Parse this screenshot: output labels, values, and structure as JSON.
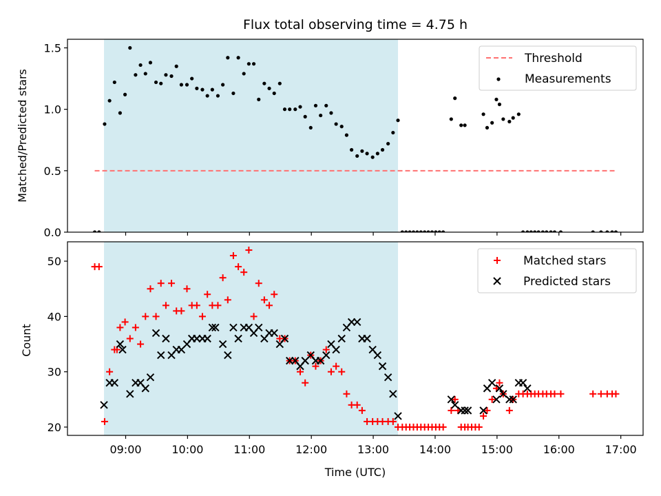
{
  "title": "Flux total observing time = 4.75 h",
  "xlabel": "Time (UTC)",
  "x_ticks": [
    {
      "h": 9,
      "label": "09:00"
    },
    {
      "h": 10,
      "label": "10:00"
    },
    {
      "h": 11,
      "label": "11:00"
    },
    {
      "h": 12,
      "label": "12:00"
    },
    {
      "h": 13,
      "label": "13:00"
    },
    {
      "h": 14,
      "label": "14:00"
    },
    {
      "h": 15,
      "label": "15:00"
    },
    {
      "h": 16,
      "label": "16:00"
    },
    {
      "h": 17,
      "label": "17:00"
    }
  ],
  "colors": {
    "threshold": "#ff7070",
    "measurements": "#000000",
    "matched": "#ff0000",
    "predicted": "#000000",
    "span": "#d4ebf1"
  },
  "chart_data": [
    {
      "type": "scatter",
      "ylabel": "Matched/Predicted stars",
      "xlim": [
        8.06,
        17.36
      ],
      "ylim": [
        0.0,
        1.57
      ],
      "y_ticks": [
        0.0,
        0.5,
        1.0,
        1.5
      ],
      "y_tick_labels": [
        "0.0",
        "0.5",
        "1.0",
        "1.5"
      ],
      "observing_span": [
        8.65,
        13.4
      ],
      "threshold": {
        "name": "Threshold",
        "value": 0.5,
        "x_range": [
          8.5,
          16.92
        ]
      },
      "legend": {
        "placement": "top-right",
        "entries": [
          "Threshold",
          "Measurements"
        ]
      },
      "series": [
        {
          "name": "Measurements",
          "x": [
            8.5,
            8.57,
            8.66,
            8.74,
            8.82,
            8.91,
            8.99,
            9.07,
            9.16,
            9.24,
            9.32,
            9.4,
            9.49,
            9.57,
            9.65,
            9.74,
            9.82,
            9.9,
            9.99,
            10.07,
            10.15,
            10.24,
            10.32,
            10.4,
            10.49,
            10.57,
            10.65,
            10.74,
            10.82,
            10.91,
            10.99,
            11.07,
            11.15,
            11.24,
            11.32,
            11.4,
            11.49,
            11.57,
            11.65,
            11.74,
            11.82,
            11.9,
            11.99,
            12.07,
            12.15,
            12.24,
            12.32,
            12.4,
            12.49,
            12.57,
            12.65,
            12.74,
            12.82,
            12.9,
            12.99,
            13.07,
            13.15,
            13.24,
            13.32,
            13.4,
            13.47,
            13.53,
            13.59,
            13.65,
            13.71,
            13.77,
            13.83,
            13.89,
            13.95,
            14.01,
            14.07,
            14.13,
            14.26,
            14.32,
            14.42,
            14.48,
            14.78,
            14.84,
            14.92,
            14.99,
            15.04,
            15.1,
            15.2,
            15.26,
            15.35,
            15.42,
            15.49,
            15.55,
            15.61,
            15.67,
            15.74,
            15.8,
            15.87,
            15.93,
            16.03,
            16.55,
            16.68,
            16.78,
            16.86,
            16.92
          ],
          "y": [
            0,
            0,
            0.88,
            1.07,
            1.22,
            0.97,
            1.12,
            1.5,
            1.28,
            1.36,
            1.29,
            1.38,
            1.22,
            1.21,
            1.28,
            1.27,
            1.35,
            1.2,
            1.2,
            1.25,
            1.17,
            1.16,
            1.11,
            1.16,
            1.11,
            1.2,
            1.42,
            1.13,
            1.42,
            1.29,
            1.37,
            1.37,
            1.08,
            1.21,
            1.17,
            1.13,
            1.21,
            1,
            1,
            1,
            1.02,
            0.94,
            0.85,
            1.03,
            0.95,
            1.03,
            0.97,
            0.88,
            0.86,
            0.79,
            0.67,
            0.62,
            0.66,
            0.64,
            0.61,
            0.64,
            0.67,
            0.72,
            0.81,
            0.91,
            0,
            0,
            0,
            0,
            0,
            0,
            0,
            0,
            0,
            0,
            0,
            0,
            0.92,
            1.09,
            0.87,
            0.87,
            0.96,
            0.85,
            0.89,
            1.08,
            1.04,
            0.92,
            0.9,
            0.93,
            0.96,
            0,
            0,
            0,
            0,
            0,
            0,
            0,
            0,
            0,
            0,
            0,
            0,
            0,
            0,
            0
          ]
        }
      ]
    },
    {
      "type": "scatter",
      "ylabel": "Count",
      "xlim": [
        8.06,
        17.36
      ],
      "ylim": [
        18.5,
        53.5
      ],
      "y_ticks": [
        20,
        30,
        40,
        50
      ],
      "y_tick_labels": [
        "20",
        "30",
        "40",
        "50"
      ],
      "observing_span": [
        8.65,
        13.4
      ],
      "legend": {
        "placement": "top-right",
        "entries": [
          "Matched stars",
          "Predicted stars"
        ]
      },
      "series": [
        {
          "name": "Matched stars",
          "marker": "+",
          "x": [
            8.5,
            8.57,
            8.66,
            8.74,
            8.82,
            8.86,
            8.91,
            8.99,
            9.07,
            9.16,
            9.24,
            9.32,
            9.4,
            9.49,
            9.57,
            9.65,
            9.74,
            9.82,
            9.9,
            9.99,
            10.07,
            10.15,
            10.24,
            10.32,
            10.4,
            10.49,
            10.57,
            10.65,
            10.74,
            10.82,
            10.91,
            10.99,
            11.07,
            11.15,
            11.24,
            11.32,
            11.4,
            11.49,
            11.57,
            11.65,
            11.74,
            11.82,
            11.9,
            11.99,
            12.07,
            12.15,
            12.24,
            12.32,
            12.4,
            12.49,
            12.57,
            12.65,
            12.74,
            12.82,
            12.9,
            12.99,
            13.07,
            13.15,
            13.24,
            13.32,
            13.4,
            13.47,
            13.53,
            13.59,
            13.65,
            13.71,
            13.77,
            13.83,
            13.89,
            13.95,
            14.01,
            14.07,
            14.13,
            14.26,
            14.32,
            14.37,
            14.42,
            14.48,
            14.53,
            14.59,
            14.65,
            14.71,
            14.78,
            14.84,
            14.92,
            14.99,
            15.04,
            15.1,
            15.2,
            15.26,
            15.35,
            15.42,
            15.49,
            15.55,
            15.61,
            15.67,
            15.74,
            15.8,
            15.87,
            15.93,
            16.03,
            16.55,
            16.68,
            16.78,
            16.86,
            16.92
          ],
          "y": [
            49,
            49,
            21,
            30,
            34,
            34,
            38,
            39,
            36,
            38,
            35,
            40,
            45,
            40,
            46,
            42,
            46,
            41,
            41,
            45,
            42,
            42,
            40,
            44,
            42,
            42,
            47,
            43,
            51,
            49,
            48,
            52,
            40,
            46,
            43,
            42,
            44,
            36,
            36,
            32,
            32,
            30,
            28,
            33,
            31,
            32,
            34,
            30,
            31,
            30,
            26,
            24,
            24,
            23,
            21,
            21,
            21,
            21,
            21,
            21,
            20,
            20,
            20,
            20,
            20,
            20,
            20,
            20,
            20,
            20,
            20,
            20,
            20,
            23,
            25,
            23,
            20,
            20,
            20,
            20,
            20,
            20,
            22,
            23,
            25,
            27,
            28,
            26,
            23,
            25,
            26,
            26,
            26,
            26,
            26,
            26,
            26,
            26,
            26,
            26,
            26,
            26,
            26,
            26,
            26,
            26
          ]
        },
        {
          "name": "Predicted stars",
          "marker": "x",
          "x": [
            8.65,
            8.74,
            8.82,
            8.91,
            8.95,
            9.07,
            9.16,
            9.24,
            9.32,
            9.4,
            9.49,
            9.57,
            9.65,
            9.74,
            9.82,
            9.9,
            9.99,
            10.07,
            10.15,
            10.24,
            10.32,
            10.4,
            10.45,
            10.57,
            10.65,
            10.74,
            10.82,
            10.91,
            10.99,
            11.07,
            11.15,
            11.24,
            11.32,
            11.4,
            11.49,
            11.57,
            11.65,
            11.74,
            11.82,
            11.9,
            11.99,
            12.07,
            12.15,
            12.24,
            12.32,
            12.4,
            12.49,
            12.57,
            12.65,
            12.74,
            12.82,
            12.9,
            12.99,
            13.07,
            13.15,
            13.24,
            13.32,
            13.4,
            14.26,
            14.32,
            14.42,
            14.48,
            14.53,
            14.78,
            14.84,
            14.92,
            14.99,
            15.04,
            15.1,
            15.2,
            15.26,
            15.35,
            15.42,
            15.49
          ],
          "y": [
            24,
            28,
            28,
            35,
            34,
            26,
            28,
            28,
            27,
            29,
            37,
            33,
            36,
            33,
            34,
            34,
            35,
            36,
            36,
            36,
            36,
            38,
            38,
            35,
            33,
            38,
            36,
            38,
            38,
            37,
            38,
            36,
            37,
            37,
            35,
            36,
            32,
            32,
            31,
            32,
            33,
            32,
            32,
            33,
            35,
            34,
            36,
            38,
            39,
            39,
            36,
            36,
            34,
            33,
            31,
            29,
            26,
            22,
            25,
            24,
            23,
            23,
            23,
            23,
            27,
            28,
            25,
            27,
            26,
            25,
            25,
            28,
            28,
            27
          ]
        }
      ]
    }
  ]
}
